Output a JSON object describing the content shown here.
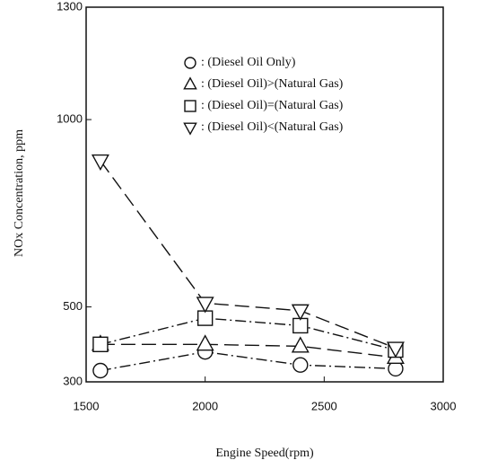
{
  "chart_data": {
    "type": "line",
    "xlabel": "Engine Speed(rpm)",
    "ylabel": "NOx Concentration, ppm",
    "x": [
      1560,
      2000,
      2400,
      2800
    ],
    "xlim": [
      1500,
      3000
    ],
    "xticks": [
      1500,
      2000,
      2500,
      3000
    ],
    "ylim": [
      300,
      1300
    ],
    "yticks": [
      300,
      500,
      1000,
      1300
    ],
    "legend": "upper right",
    "series": [
      {
        "name": ": (Diesel Oil Only)",
        "color": "#111111",
        "marker": "circle",
        "linestyle": "dashdot",
        "values": [
          330,
          380,
          345,
          335
        ]
      },
      {
        "name": ": (Diesel Oil)>(Natural Gas)",
        "color": "#111111",
        "marker": "triangle-up",
        "linestyle": "dashed",
        "values": [
          400,
          400,
          395,
          365
        ]
      },
      {
        "name": ": (Diesel Oil)=(Natural Gas)",
        "color": "#111111",
        "marker": "square",
        "linestyle": "dashdot",
        "values": [
          400,
          470,
          450,
          385
        ]
      },
      {
        "name": ": (Diesel Oil)<(Natural Gas)",
        "color": "#111111",
        "marker": "triangle-down",
        "linestyle": "dashed",
        "values": [
          890,
          510,
          490,
          390
        ]
      }
    ]
  }
}
